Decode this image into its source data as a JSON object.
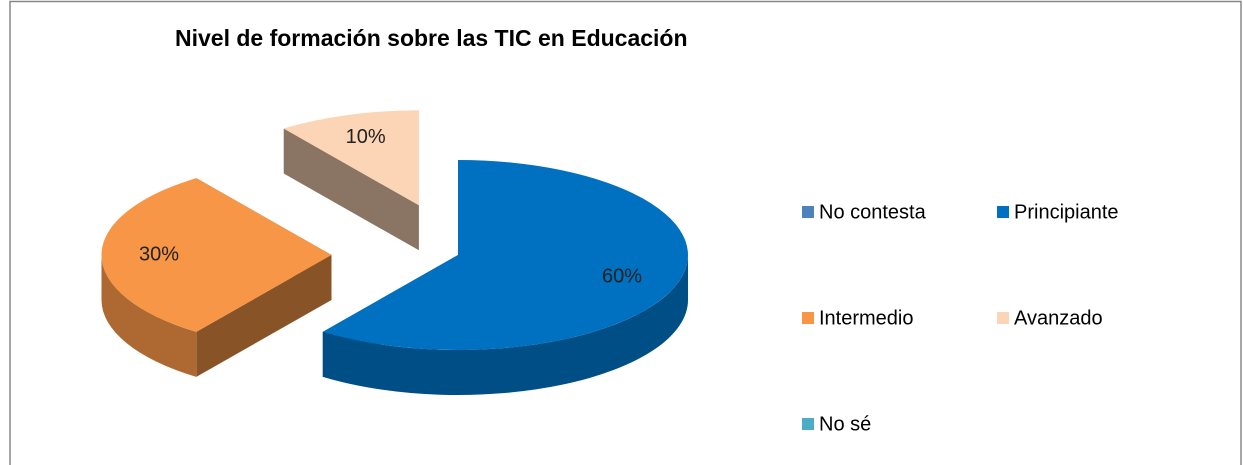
{
  "chart_data": {
    "type": "pie",
    "title": "Nivel de formación sobre las TIC en Educación",
    "categories": [
      "No contesta",
      "Principiante",
      "Intermedio",
      "Avanzado",
      "No sé"
    ],
    "values": [
      0,
      60,
      30,
      10,
      0
    ],
    "value_labels": [
      null,
      "60%",
      "30%",
      "10%",
      null
    ],
    "colors": [
      "#4f81bd",
      "#0070c0",
      "#f79646",
      "#fbd5b5",
      "#4bacc6"
    ],
    "legend": "right"
  }
}
